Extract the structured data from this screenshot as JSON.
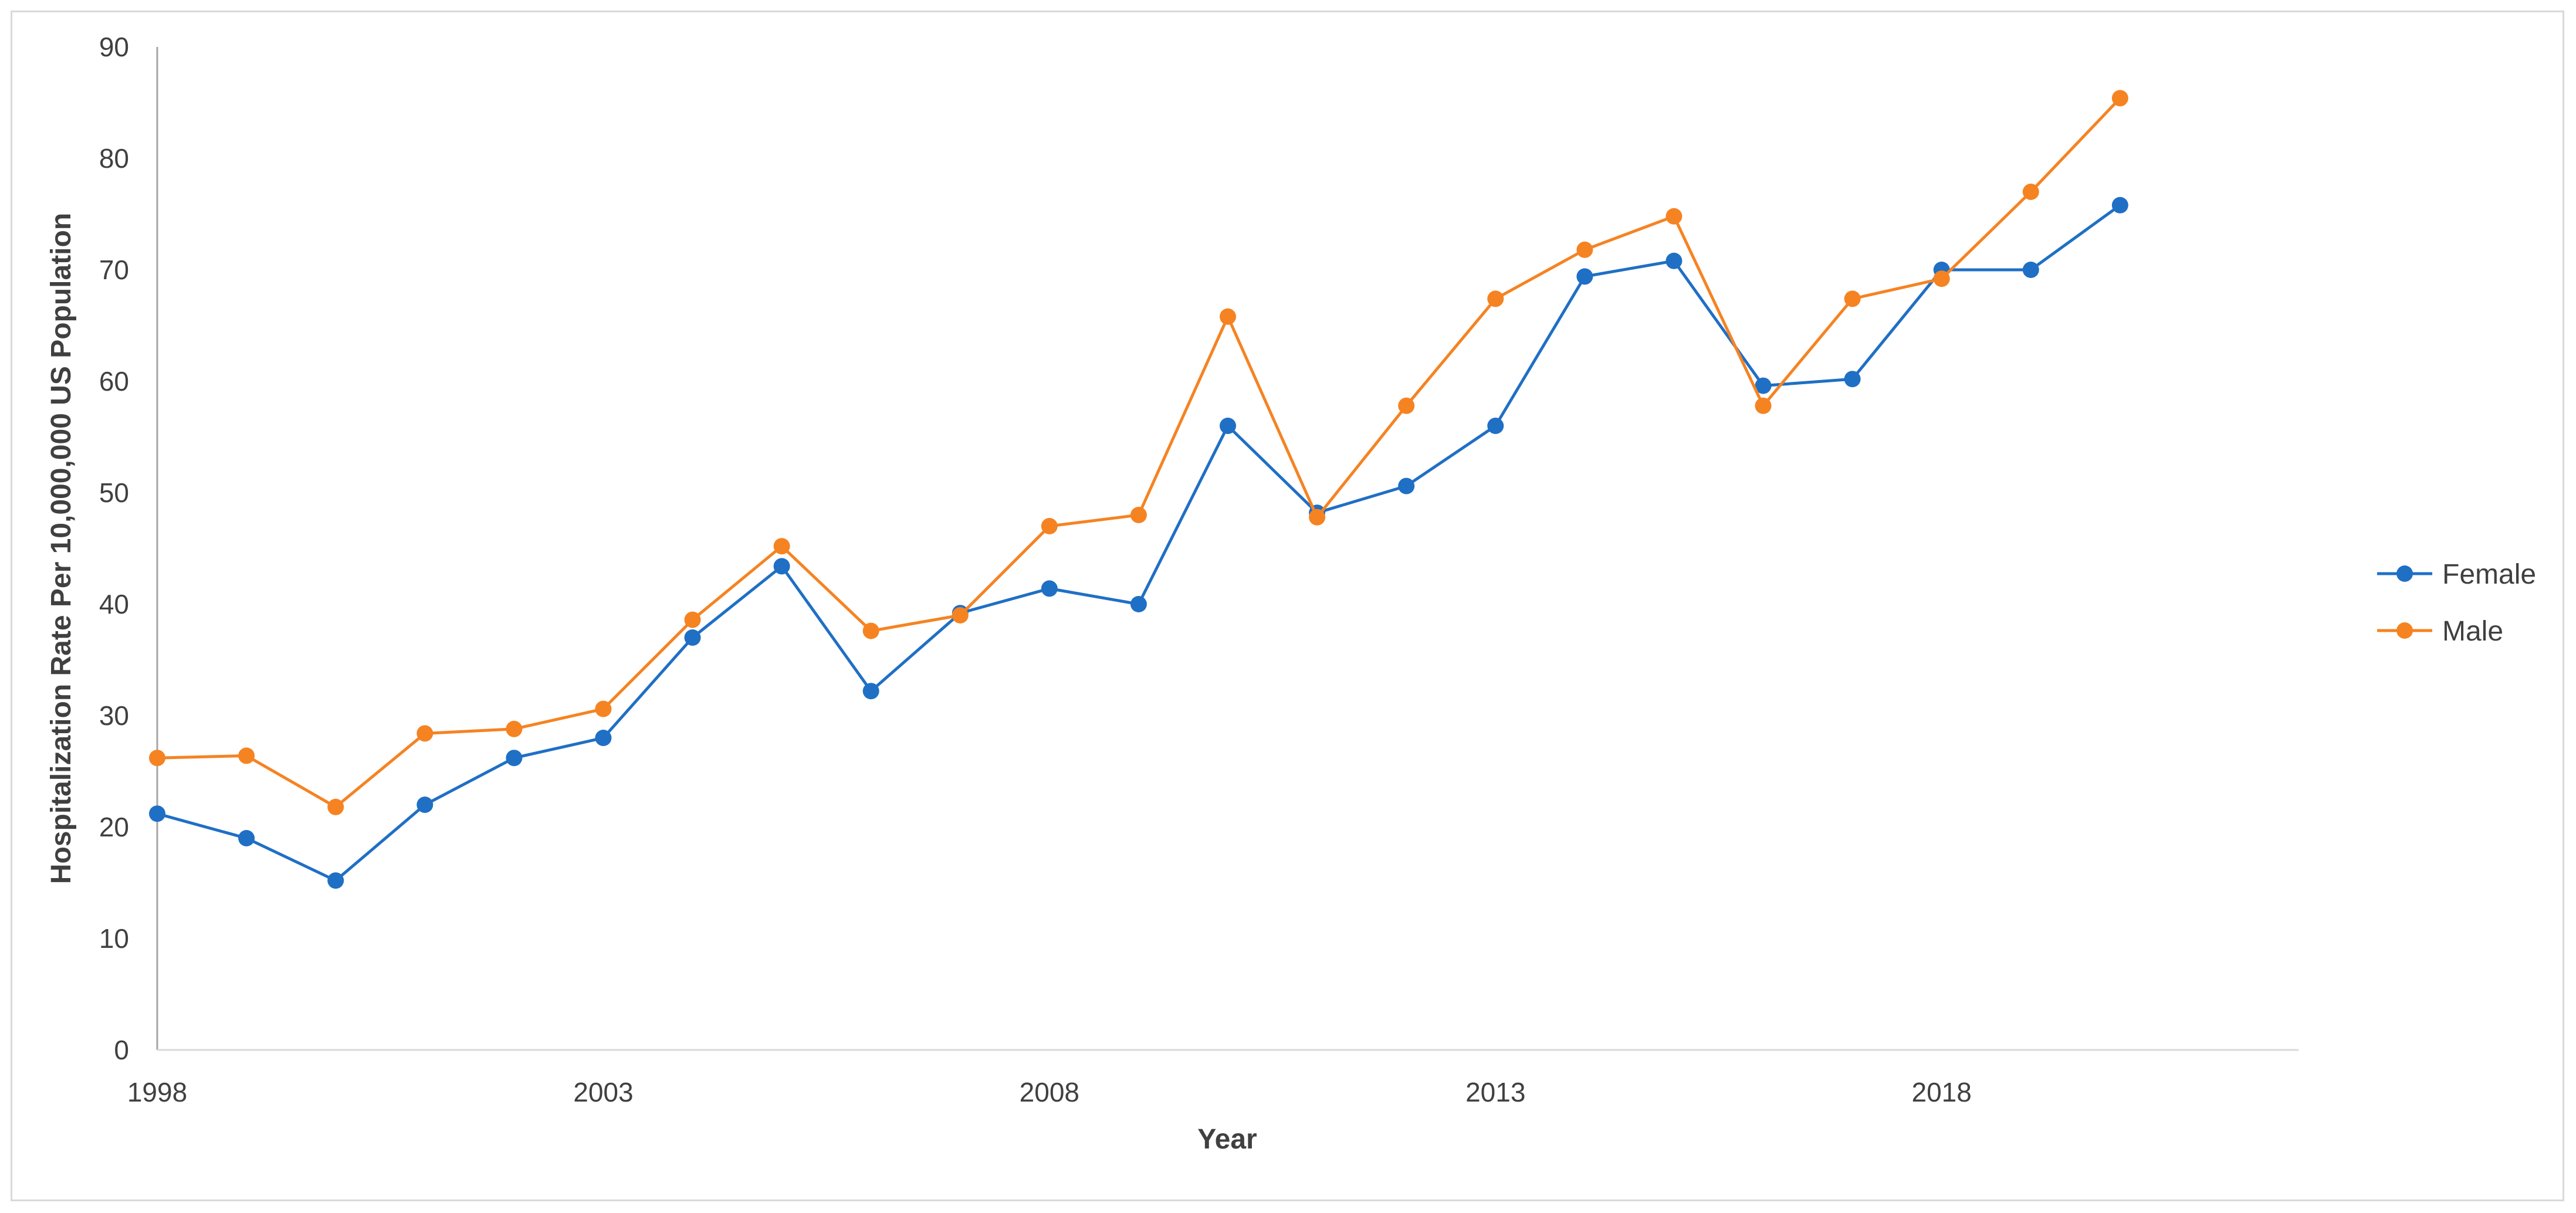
{
  "chart_data": {
    "type": "line",
    "x": [
      1998,
      1999,
      2000,
      2001,
      2002,
      2003,
      2004,
      2005,
      2006,
      2007,
      2008,
      2009,
      2010,
      2011,
      2012,
      2013,
      2014,
      2015,
      2016,
      2017,
      2018,
      2019,
      2020
    ],
    "series": [
      {
        "name": "Female",
        "color": "#1f6fc5",
        "values": [
          21.2,
          19.0,
          15.2,
          22.0,
          26.2,
          28.0,
          37.0,
          43.4,
          32.2,
          39.2,
          41.4,
          40.0,
          56.0,
          48.2,
          50.6,
          56.0,
          69.4,
          70.8,
          59.6,
          60.2,
          70.0,
          70.0,
          75.8
        ]
      },
      {
        "name": "Male",
        "color": "#f58322",
        "values": [
          26.2,
          26.4,
          21.8,
          28.4,
          28.8,
          30.6,
          38.6,
          45.2,
          37.6,
          39.0,
          47.0,
          48.0,
          65.8,
          47.8,
          57.8,
          67.4,
          71.8,
          74.8,
          57.8,
          67.4,
          69.2,
          77.0,
          85.4
        ]
      }
    ],
    "xlabel": "Year",
    "ylabel": "Hospitalization Rate Per 10,000,000 US Population",
    "ylim": [
      0,
      90
    ],
    "yticks": [
      0,
      10,
      20,
      30,
      40,
      50,
      60,
      70,
      80,
      90
    ],
    "xticks": [
      1998,
      2003,
      2008,
      2013,
      2018
    ],
    "xlim": [
      1998,
      2022
    ],
    "grid": false,
    "legend_position": "right"
  }
}
